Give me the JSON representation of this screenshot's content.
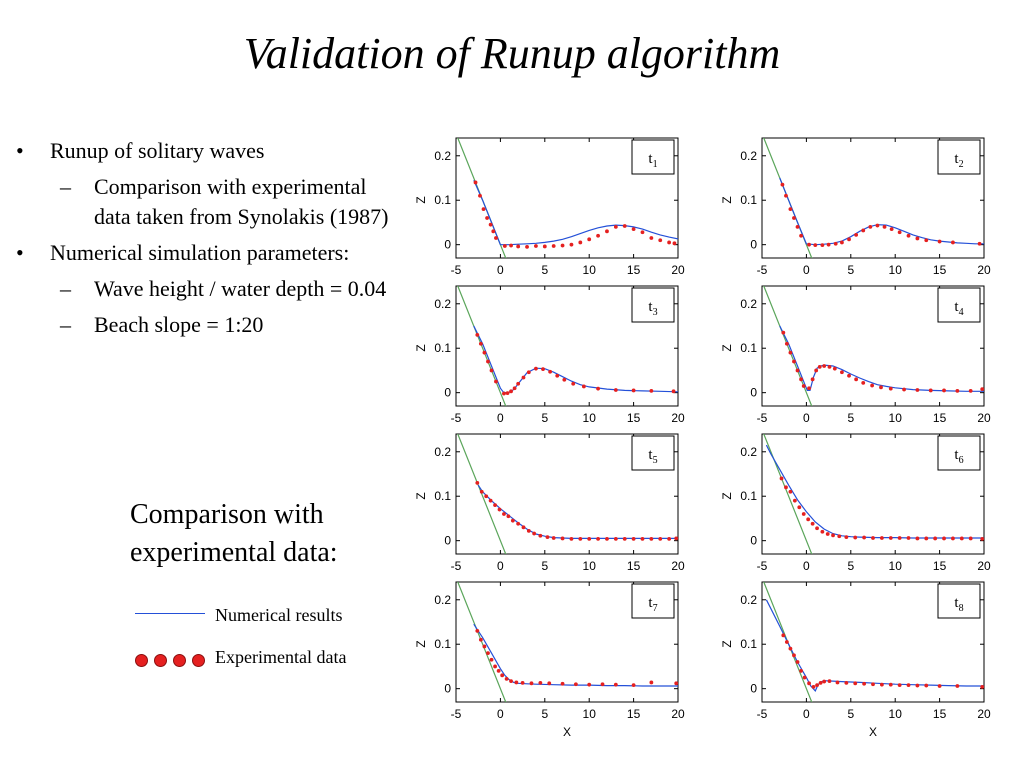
{
  "title": "Validation of Runup algorithm",
  "bullets": [
    {
      "level": 1,
      "mark": "•",
      "text": "Runup of solitary waves"
    },
    {
      "level": 2,
      "mark": "–",
      "text": "Comparison with experimental data taken from Synolakis (1987)"
    },
    {
      "level": 1,
      "mark": "•",
      "text": "Numerical simulation parameters:"
    },
    {
      "level": 2,
      "mark": "–",
      "text": "Wave height / water depth = 0.04"
    },
    {
      "level": 2,
      "mark": "–",
      "text": "Beach slope = 1:20"
    }
  ],
  "comparison_heading": "Comparison with experimental data:",
  "legend": {
    "numerical": "Numerical results",
    "experimental": "Experimental data",
    "numerical_color": "#2450d8",
    "experimental_color": "#e52020",
    "beach_color": "#5aa55a"
  },
  "chart_data": {
    "type": "line",
    "xlabel": "X",
    "ylabel": "Z",
    "xlim": [
      -5,
      20
    ],
    "ylim": [
      -0.03,
      0.24
    ],
    "xticks": [
      -5,
      0,
      5,
      10,
      15,
      20
    ],
    "yticks": [
      0,
      0.1,
      0.2
    ],
    "beach": {
      "x": [
        -5,
        1
      ],
      "y": [
        0.25,
        -0.05
      ]
    },
    "panels": [
      {
        "label": "t",
        "sub": "1",
        "numerical": {
          "x": [
            -3,
            -2,
            -1,
            -0.5,
            0,
            1,
            2,
            3,
            4,
            5,
            6,
            7,
            8,
            9,
            10,
            11,
            12,
            13,
            14,
            15,
            16,
            17,
            18,
            19,
            20
          ],
          "y": [
            0.145,
            0.1,
            0.05,
            0.025,
            0,
            0,
            0.001,
            0.002,
            0.003,
            0.005,
            0.008,
            0.012,
            0.018,
            0.025,
            0.032,
            0.038,
            0.042,
            0.044,
            0.043,
            0.04,
            0.035,
            0.028,
            0.022,
            0.017,
            0.013
          ]
        },
        "experimental": {
          "x": [
            -2.8,
            -2.3,
            -1.9,
            -1.5,
            -1.1,
            -0.8,
            -0.5,
            0.5,
            1.2,
            2,
            3,
            4,
            5,
            6,
            7,
            8,
            9,
            10,
            11,
            12,
            13,
            14,
            15,
            16,
            17,
            18,
            19,
            19.6
          ],
          "y": [
            0.14,
            0.11,
            0.08,
            0.06,
            0.045,
            0.03,
            0.015,
            -0.003,
            -0.002,
            -0.004,
            -0.005,
            -0.003,
            -0.004,
            -0.003,
            -0.002,
            0,
            0.005,
            0.012,
            0.02,
            0.03,
            0.04,
            0.042,
            0.035,
            0.028,
            0.015,
            0.01,
            0.005,
            0.003
          ]
        }
      },
      {
        "label": "t",
        "sub": "2",
        "numerical": {
          "x": [
            -3,
            -2,
            -1,
            0,
            1,
            2,
            3,
            4,
            5,
            6,
            7,
            8,
            9,
            10,
            11,
            12,
            13,
            14,
            15,
            16,
            17,
            18,
            19,
            20
          ],
          "y": [
            0.15,
            0.1,
            0.05,
            0.002,
            0,
            0.001,
            0.003,
            0.008,
            0.018,
            0.03,
            0.04,
            0.045,
            0.044,
            0.038,
            0.03,
            0.022,
            0.016,
            0.011,
            0.008,
            0.006,
            0.004,
            0.003,
            0.002,
            0.002
          ]
        },
        "experimental": {
          "x": [
            -2.7,
            -2.3,
            -1.8,
            -1.4,
            -1,
            -0.6,
            0.3,
            1,
            1.8,
            2.5,
            3.3,
            4,
            4.8,
            5.6,
            6.4,
            7.2,
            8,
            8.8,
            9.6,
            10.5,
            11.5,
            12.5,
            13.5,
            15,
            16.5,
            19.5
          ],
          "y": [
            0.135,
            0.11,
            0.08,
            0.06,
            0.04,
            0.02,
            0,
            -0.001,
            -0.001,
            0,
            0.002,
            0.005,
            0.012,
            0.022,
            0.032,
            0.04,
            0.043,
            0.04,
            0.035,
            0.028,
            0.02,
            0.014,
            0.01,
            0.007,
            0.005,
            0.002
          ]
        }
      },
      {
        "label": "t",
        "sub": "3",
        "numerical": {
          "x": [
            -3,
            -2,
            -1,
            0,
            0.3,
            0.6,
            1,
            1.5,
            2,
            3,
            4,
            5,
            6,
            7,
            8,
            9,
            10,
            12,
            14,
            16,
            18,
            20
          ],
          "y": [
            0.15,
            0.11,
            0.06,
            0.01,
            0.002,
            0,
            0.001,
            0.007,
            0.02,
            0.045,
            0.055,
            0.054,
            0.046,
            0.036,
            0.026,
            0.018,
            0.013,
            0.008,
            0.005,
            0.004,
            0.003,
            0.002
          ]
        },
        "experimental": {
          "x": [
            -2.6,
            -2.2,
            -1.8,
            -1.4,
            -1,
            -0.5,
            0.4,
            0.8,
            1.2,
            1.6,
            2,
            2.6,
            3.2,
            4,
            4.8,
            5.6,
            6.4,
            7.2,
            8.2,
            9.4,
            11,
            13,
            15,
            17,
            19.5
          ],
          "y": [
            0.13,
            0.11,
            0.09,
            0.07,
            0.05,
            0.025,
            -0.002,
            -0.001,
            0.003,
            0.01,
            0.02,
            0.034,
            0.046,
            0.054,
            0.053,
            0.047,
            0.038,
            0.029,
            0.02,
            0.014,
            0.009,
            0.006,
            0.005,
            0.004,
            0.003
          ]
        }
      },
      {
        "label": "t",
        "sub": "4",
        "numerical": {
          "x": [
            -3,
            -2,
            -1,
            -0.2,
            0.1,
            0.4,
            0.8,
            1.2,
            1.6,
            2,
            3,
            4,
            5,
            6,
            7,
            8,
            9,
            10,
            12,
            14,
            16,
            18,
            20
          ],
          "y": [
            0.15,
            0.11,
            0.06,
            0.02,
            0.005,
            0.005,
            0.035,
            0.055,
            0.06,
            0.062,
            0.06,
            0.052,
            0.042,
            0.033,
            0.025,
            0.018,
            0.014,
            0.011,
            0.007,
            0.005,
            0.004,
            0.003,
            0.003
          ]
        },
        "experimental": {
          "x": [
            -2.6,
            -2.2,
            -1.8,
            -1.4,
            -1,
            -0.6,
            -0.3,
            0.3,
            0.7,
            1.1,
            1.5,
            2,
            2.6,
            3.2,
            4,
            4.8,
            5.6,
            6.4,
            7.4,
            8.4,
            9.5,
            11,
            12.5,
            14,
            15.5,
            17,
            18.5,
            19.8
          ],
          "y": [
            0.135,
            0.11,
            0.09,
            0.07,
            0.05,
            0.03,
            0.015,
            0.01,
            0.03,
            0.05,
            0.058,
            0.06,
            0.058,
            0.054,
            0.046,
            0.038,
            0.03,
            0.022,
            0.016,
            0.012,
            0.009,
            0.007,
            0.006,
            0.005,
            0.005,
            0.004,
            0.004,
            0.008
          ]
        }
      },
      {
        "label": "t",
        "sub": "5",
        "numerical": {
          "x": [
            -2.5,
            -2,
            -1,
            0,
            1,
            2,
            3,
            4,
            5,
            6,
            7,
            8,
            10,
            12,
            14,
            16,
            18,
            20
          ],
          "y": [
            0.125,
            0.11,
            0.09,
            0.072,
            0.056,
            0.04,
            0.026,
            0.015,
            0.01,
            0.007,
            0.006,
            0.005,
            0.005,
            0.005,
            0.005,
            0.005,
            0.005,
            0.005
          ]
        },
        "experimental": {
          "x": [
            -2.6,
            -2.1,
            -1.6,
            -1.1,
            -0.6,
            -0.1,
            0.4,
            0.9,
            1.4,
            2,
            2.6,
            3.2,
            3.8,
            4.5,
            5.3,
            6,
            7,
            8,
            9,
            10,
            11,
            12,
            13,
            14,
            15,
            16,
            17,
            18,
            19,
            19.8
          ],
          "y": [
            0.13,
            0.11,
            0.1,
            0.09,
            0.08,
            0.07,
            0.06,
            0.055,
            0.045,
            0.038,
            0.03,
            0.022,
            0.016,
            0.011,
            0.008,
            0.006,
            0.005,
            0.004,
            0.004,
            0.004,
            0.004,
            0.004,
            0.004,
            0.004,
            0.004,
            0.004,
            0.004,
            0.004,
            0.004,
            0.005
          ]
        }
      },
      {
        "label": "t",
        "sub": "6",
        "numerical": {
          "x": [
            -4.5,
            -4,
            -3,
            -2,
            -1,
            0,
            1,
            2,
            3,
            4,
            5,
            6,
            8,
            10,
            12,
            14,
            16,
            18,
            20
          ],
          "y": [
            0.215,
            0.195,
            0.16,
            0.125,
            0.092,
            0.065,
            0.042,
            0.026,
            0.016,
            0.011,
            0.009,
            0.008,
            0.007,
            0.007,
            0.006,
            0.006,
            0.006,
            0.006,
            0.006
          ]
        },
        "experimental": {
          "x": [
            -2.8,
            -2.3,
            -1.8,
            -1.3,
            -0.8,
            -0.3,
            0.2,
            0.7,
            1.2,
            1.8,
            2.4,
            3,
            3.7,
            4.5,
            5.5,
            6.5,
            7.5,
            8.5,
            9.5,
            10.5,
            11.5,
            12.5,
            13.5,
            14.5,
            15.5,
            16.5,
            17.5,
            18.5,
            19.8
          ],
          "y": [
            0.14,
            0.12,
            0.11,
            0.09,
            0.075,
            0.06,
            0.048,
            0.038,
            0.028,
            0.02,
            0.015,
            0.012,
            0.01,
            0.008,
            0.007,
            0.007,
            0.006,
            0.006,
            0.006,
            0.006,
            0.006,
            0.005,
            0.005,
            0.005,
            0.005,
            0.005,
            0.005,
            0.005,
            0.004
          ]
        }
      },
      {
        "label": "t",
        "sub": "7",
        "numerical": {
          "x": [
            -3,
            -2,
            -1,
            0,
            0.5,
            1,
            1.5,
            2,
            3,
            4,
            6,
            8,
            10,
            12,
            14,
            16,
            18,
            20
          ],
          "y": [
            0.145,
            0.115,
            0.08,
            0.045,
            0.03,
            0.02,
            0.014,
            0.012,
            0.011,
            0.01,
            0.009,
            0.008,
            0.008,
            0.007,
            0.007,
            0.006,
            0.006,
            0.006
          ]
        },
        "experimental": {
          "x": [
            -2.6,
            -2.2,
            -1.8,
            -1.4,
            -1,
            -0.6,
            -0.2,
            0.2,
            0.7,
            1.2,
            1.8,
            2.5,
            3.5,
            4.5,
            5.5,
            7,
            8.5,
            10,
            11.5,
            13,
            15,
            17,
            19.8
          ],
          "y": [
            0.13,
            0.11,
            0.095,
            0.08,
            0.065,
            0.05,
            0.04,
            0.03,
            0.022,
            0.017,
            0.014,
            0.013,
            0.012,
            0.013,
            0.012,
            0.011,
            0.01,
            0.009,
            0.01,
            0.009,
            0.008,
            0.014,
            0.012
          ]
        }
      },
      {
        "label": "t",
        "sub": "8",
        "numerical": {
          "x": [
            -4.5,
            -4,
            -3,
            -2,
            -1,
            0,
            0.5,
            1,
            1.3,
            1.6,
            2,
            3,
            4,
            6,
            8,
            10,
            12,
            14,
            16,
            18,
            20
          ],
          "y": [
            0.2,
            0.18,
            0.14,
            0.1,
            0.06,
            0.025,
            0.006,
            -0.005,
            0.008,
            0.015,
            0.018,
            0.017,
            0.016,
            0.014,
            0.012,
            0.01,
            0.009,
            0.008,
            0.007,
            0.006,
            0.006
          ]
        },
        "experimental": {
          "x": [
            -2.6,
            -2.2,
            -1.8,
            -1.4,
            -1,
            -0.6,
            -0.2,
            0.3,
            0.8,
            1.2,
            1.6,
            2,
            2.6,
            3.5,
            4.5,
            5.5,
            6.5,
            7.5,
            8.5,
            9.5,
            10.5,
            11.5,
            12.5,
            13.5,
            15,
            17,
            19.8
          ],
          "y": [
            0.12,
            0.105,
            0.09,
            0.075,
            0.06,
            0.04,
            0.025,
            0.012,
            0.004,
            0.008,
            0.013,
            0.016,
            0.017,
            0.014,
            0.013,
            0.012,
            0.011,
            0.01,
            0.009,
            0.009,
            0.008,
            0.008,
            0.007,
            0.007,
            0.006,
            0.006,
            0.004
          ]
        }
      }
    ]
  }
}
